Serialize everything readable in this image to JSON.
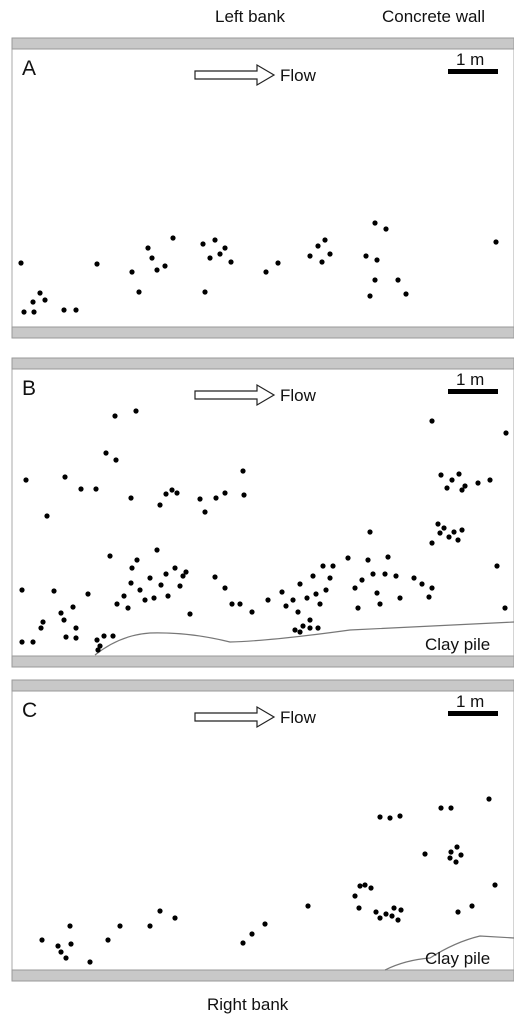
{
  "header": {
    "left_bank": "Left bank",
    "concrete_wall": "Concrete wall"
  },
  "panels": [
    {
      "label": "A",
      "flow": "Flow",
      "scale": "1 m"
    },
    {
      "label": "B",
      "flow": "Flow",
      "scale": "1 m",
      "annotation": "Clay pile"
    },
    {
      "label": "C",
      "flow": "Flow",
      "scale": "1 m",
      "annotation": "Clay pile"
    }
  ],
  "footer": "Right bank"
}
